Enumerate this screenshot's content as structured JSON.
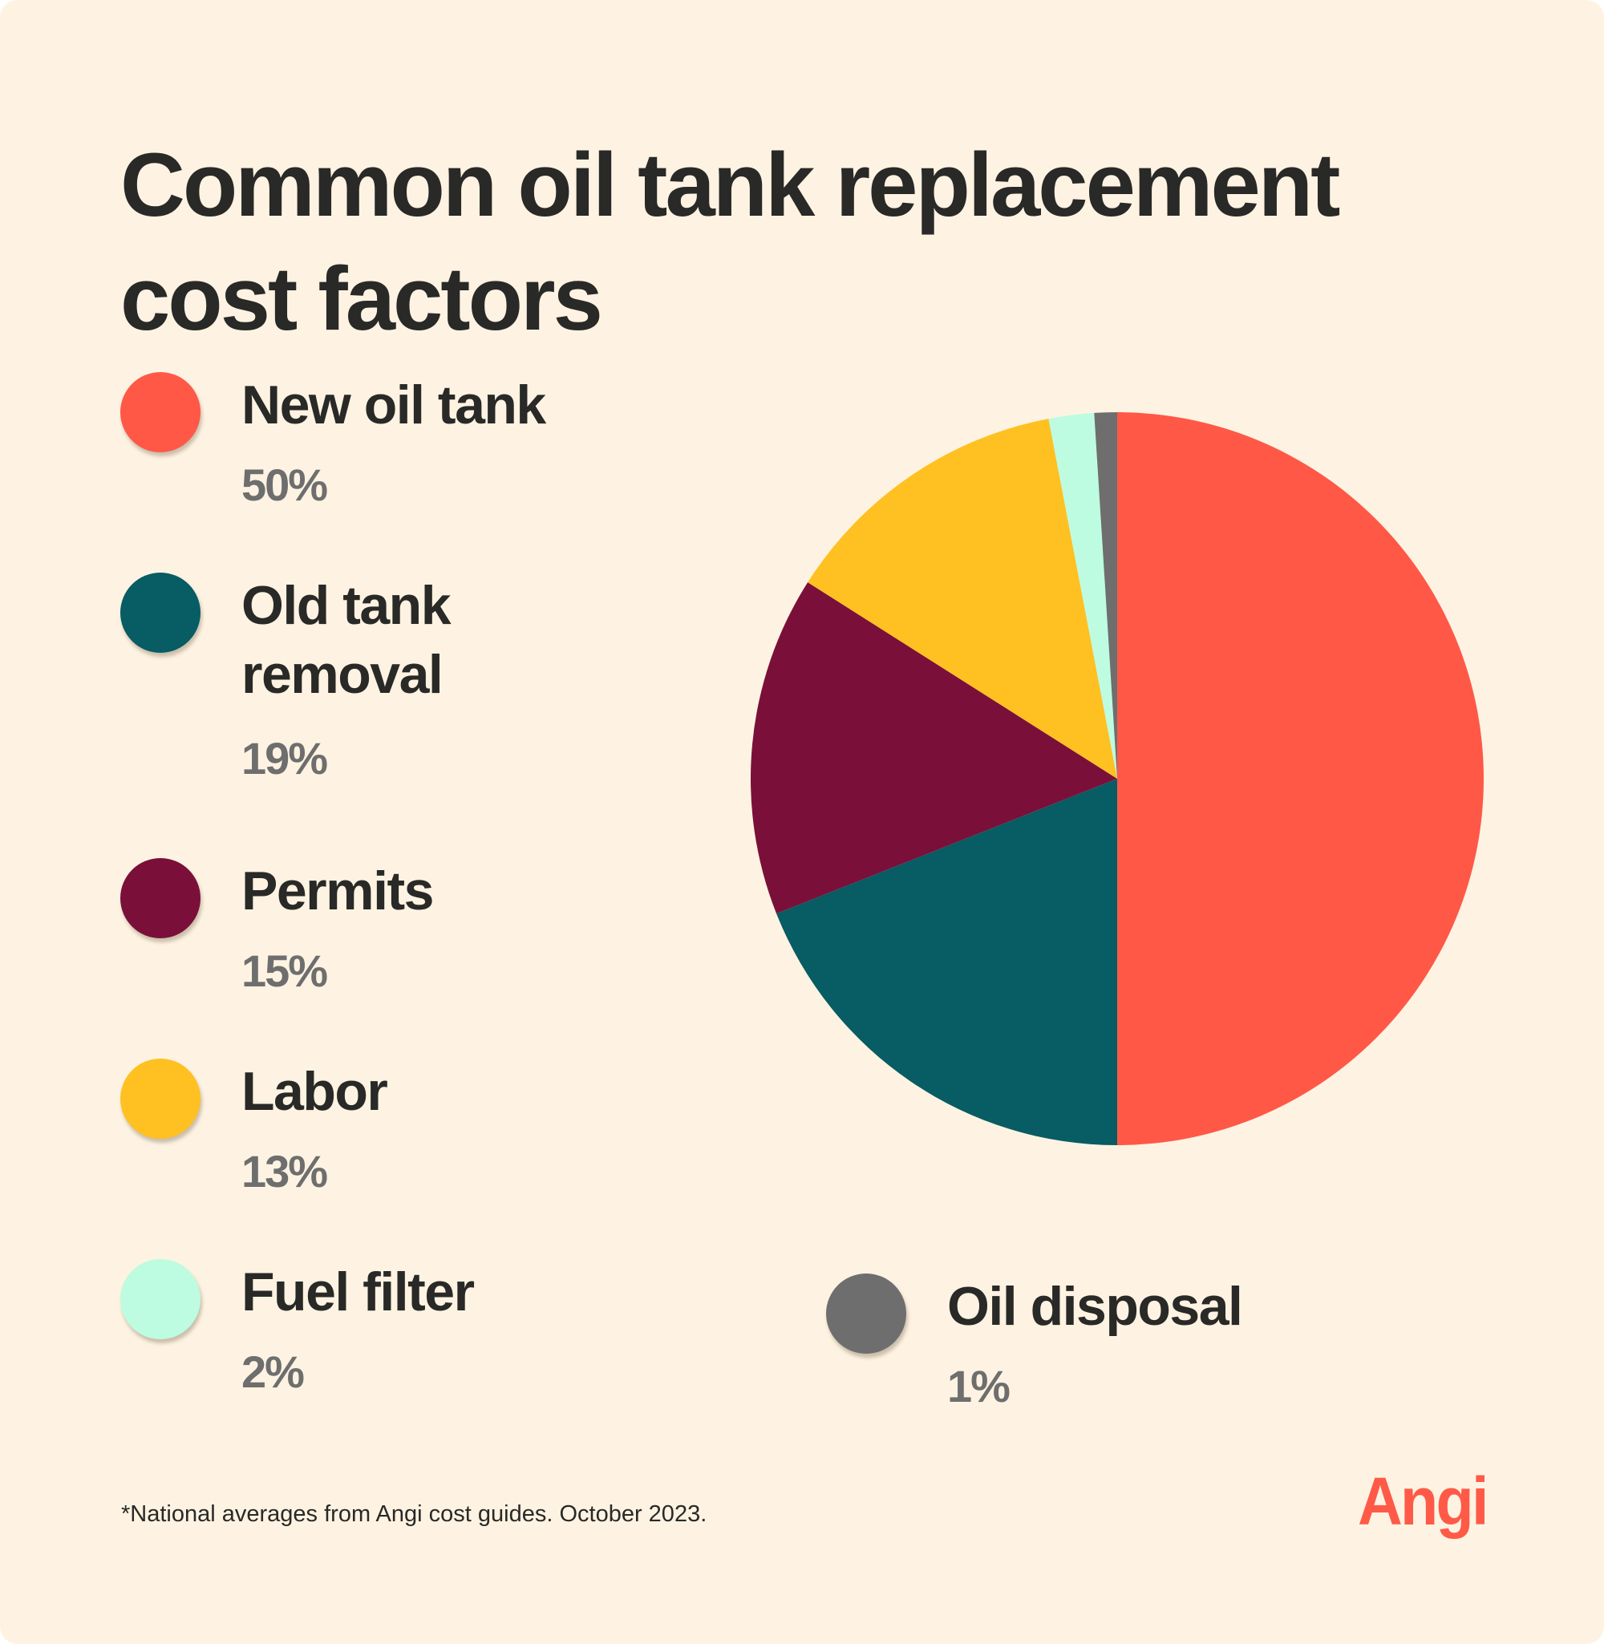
{
  "title": "Common oil tank replacement cost factors",
  "legend": [
    {
      "label": "New oil tank",
      "value": "50%",
      "color": "#FF5847"
    },
    {
      "label": "Old tank removal",
      "value": "19%",
      "color": "#085C63"
    },
    {
      "label": "Permits",
      "value": "15%",
      "color": "#7A1039"
    },
    {
      "label": "Labor",
      "value": "13%",
      "color": "#FFC022"
    },
    {
      "label": "Fuel filter",
      "value": "2%",
      "color": "#BDFCE1"
    },
    {
      "label": "Oil disposal",
      "value": "1%",
      "color": "#6E6E6E"
    }
  ],
  "footnote": "*National averages from Angi cost guides. October 2023.",
  "brand": {
    "logo_text": "Angi",
    "color": "#FF5A48"
  },
  "colors": {
    "background": "#FEF3E2",
    "text": "#292927",
    "value_text": "#6E6E6E"
  },
  "chart_data": {
    "type": "pie",
    "title": "Common oil tank replacement cost factors",
    "categories": [
      "New oil tank",
      "Old tank removal",
      "Permits",
      "Labor",
      "Fuel filter",
      "Oil disposal"
    ],
    "values": [
      50,
      19,
      15,
      13,
      2,
      1
    ],
    "unit": "%",
    "colors": [
      "#FF5847",
      "#085C63",
      "#7A1039",
      "#FFC022",
      "#BDFCE1",
      "#6E6E6E"
    ],
    "start_angle": "12 o'clock",
    "direction": "clockwise",
    "legend_position": "left",
    "annotations": [
      "*National averages from Angi cost guides. October 2023."
    ]
  }
}
